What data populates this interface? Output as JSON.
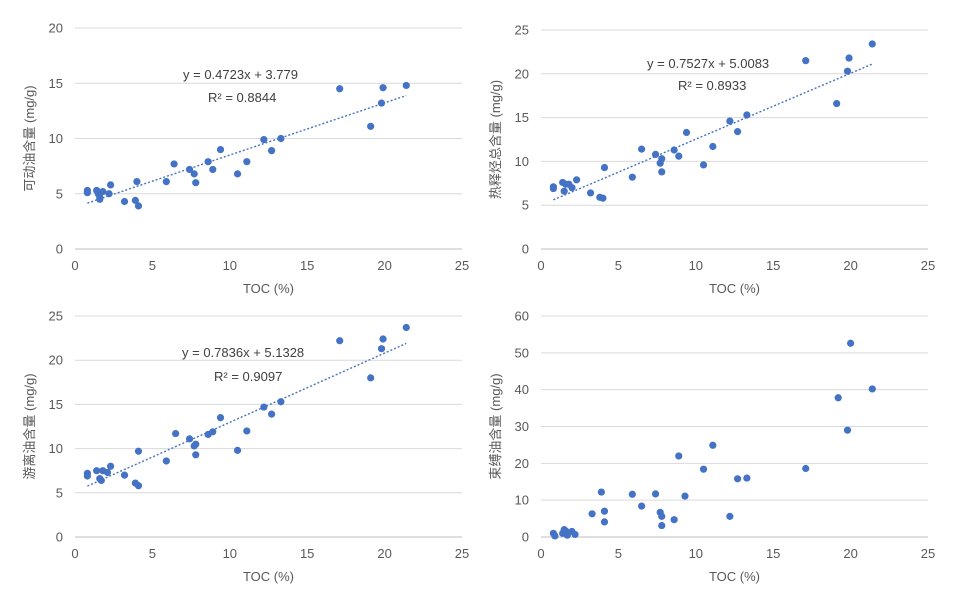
{
  "chart_data": [
    {
      "type": "scatter",
      "xlabel": "TOC (%)",
      "ylabel": "可动油含量 (mg/g)",
      "xlim": [
        0,
        25
      ],
      "ylim": [
        0,
        20
      ],
      "xticks": [
        0,
        5,
        10,
        15,
        20,
        25
      ],
      "yticks": [
        0,
        5,
        10,
        15,
        20
      ],
      "xtick_labels": [
        "0",
        "5",
        "10",
        "15",
        "20",
        "25"
      ],
      "ytick_labels": [
        "0",
        "5",
        "10",
        "15",
        "20"
      ],
      "grid": true,
      "trendline": {
        "slope": 0.4723,
        "intercept": 3.779,
        "x_range": [
          0.8,
          21.4
        ]
      },
      "equation": "y = 0.4723x + 3.779",
      "r2": "R² = 0.8844",
      "points": [
        [
          0.8,
          5.3
        ],
        [
          0.8,
          5.1
        ],
        [
          1.4,
          5.3
        ],
        [
          1.5,
          5.0
        ],
        [
          1.6,
          4.7
        ],
        [
          1.6,
          4.5
        ],
        [
          1.8,
          5.2
        ],
        [
          2.2,
          5.0
        ],
        [
          2.3,
          5.8
        ],
        [
          3.2,
          4.3
        ],
        [
          3.9,
          4.4
        ],
        [
          4.0,
          6.1
        ],
        [
          4.1,
          3.9
        ],
        [
          5.9,
          6.1
        ],
        [
          6.4,
          7.7
        ],
        [
          7.4,
          7.2
        ],
        [
          7.7,
          6.8
        ],
        [
          7.8,
          6.0
        ],
        [
          8.6,
          7.9
        ],
        [
          8.9,
          7.2
        ],
        [
          9.4,
          9.0
        ],
        [
          10.5,
          6.8
        ],
        [
          11.1,
          7.9
        ],
        [
          12.2,
          9.9
        ],
        [
          12.7,
          8.9
        ],
        [
          13.3,
          10.0
        ],
        [
          17.1,
          14.5
        ],
        [
          19.1,
          11.1
        ],
        [
          19.8,
          13.2
        ],
        [
          19.9,
          14.6
        ],
        [
          21.4,
          14.8
        ]
      ]
    },
    {
      "type": "scatter",
      "xlabel": "TOC (%)",
      "ylabel": "热释烃总含量 (mg/g)",
      "xlim": [
        0,
        25
      ],
      "ylim": [
        0,
        25
      ],
      "xticks": [
        0,
        5,
        10,
        15,
        20,
        25
      ],
      "yticks": [
        0,
        5,
        10,
        15,
        20,
        25
      ],
      "xtick_labels": [
        "0",
        "5",
        "10",
        "15",
        "20",
        "25"
      ],
      "ytick_labels": [
        "0",
        "5",
        "10",
        "15",
        "20",
        "25"
      ],
      "grid": true,
      "trendline": {
        "slope": 0.7527,
        "intercept": 5.0083,
        "x_range": [
          0.8,
          21.4
        ]
      },
      "equation": "y = 0.7527x + 5.0083",
      "r2": "R² = 0.8933",
      "points": [
        [
          0.8,
          7.1
        ],
        [
          0.8,
          6.9
        ],
        [
          1.4,
          7.6
        ],
        [
          1.5,
          6.6
        ],
        [
          1.6,
          7.4
        ],
        [
          1.8,
          7.4
        ],
        [
          2.0,
          7.0
        ],
        [
          2.3,
          7.9
        ],
        [
          3.2,
          6.4
        ],
        [
          3.8,
          5.9
        ],
        [
          4.0,
          5.8
        ],
        [
          4.1,
          9.3
        ],
        [
          5.9,
          8.2
        ],
        [
          6.5,
          11.4
        ],
        [
          7.4,
          10.8
        ],
        [
          7.7,
          9.8
        ],
        [
          7.8,
          10.3
        ],
        [
          7.8,
          8.8
        ],
        [
          8.6,
          11.3
        ],
        [
          8.9,
          10.6
        ],
        [
          9.4,
          13.3
        ],
        [
          10.5,
          9.6
        ],
        [
          11.1,
          11.7
        ],
        [
          12.2,
          14.6
        ],
        [
          12.7,
          13.4
        ],
        [
          13.3,
          15.3
        ],
        [
          17.1,
          21.5
        ],
        [
          19.1,
          16.6
        ],
        [
          19.8,
          20.3
        ],
        [
          19.9,
          21.8
        ],
        [
          21.4,
          23.4
        ]
      ]
    },
    {
      "type": "scatter",
      "xlabel": "TOC (%)",
      "ylabel": "游离油含量 (mg/g)",
      "xlim": [
        0,
        25
      ],
      "ylim": [
        0,
        25
      ],
      "xticks": [
        0,
        5,
        10,
        15,
        20,
        25
      ],
      "yticks": [
        0,
        5,
        10,
        15,
        20,
        25
      ],
      "xtick_labels": [
        "0",
        "5",
        "10",
        "15",
        "20",
        "25"
      ],
      "ytick_labels": [
        "0",
        "5",
        "10",
        "15",
        "20",
        "25"
      ],
      "grid": true,
      "trendline": {
        "slope": 0.7836,
        "intercept": 5.1328,
        "x_range": [
          0.8,
          21.4
        ]
      },
      "equation": "y = 0.7836x + 5.1328",
      "r2": "R² = 0.9097",
      "points": [
        [
          0.8,
          7.2
        ],
        [
          0.8,
          6.9
        ],
        [
          1.4,
          7.5
        ],
        [
          1.6,
          6.6
        ],
        [
          1.7,
          6.4
        ],
        [
          1.8,
          7.5
        ],
        [
          2.1,
          7.3
        ],
        [
          2.3,
          8.0
        ],
        [
          3.2,
          7.0
        ],
        [
          3.9,
          6.1
        ],
        [
          4.1,
          5.8
        ],
        [
          4.1,
          9.7
        ],
        [
          5.9,
          8.6
        ],
        [
          6.5,
          11.7
        ],
        [
          7.4,
          11.1
        ],
        [
          7.7,
          10.3
        ],
        [
          7.8,
          10.5
        ],
        [
          7.8,
          9.3
        ],
        [
          8.6,
          11.6
        ],
        [
          8.9,
          11.9
        ],
        [
          9.4,
          13.5
        ],
        [
          10.5,
          9.8
        ],
        [
          11.1,
          12.0
        ],
        [
          12.2,
          14.7
        ],
        [
          12.7,
          13.9
        ],
        [
          13.3,
          15.3
        ],
        [
          17.1,
          22.2
        ],
        [
          19.1,
          18.0
        ],
        [
          19.8,
          21.3
        ],
        [
          19.9,
          22.4
        ],
        [
          21.4,
          23.7
        ]
      ]
    },
    {
      "type": "scatter",
      "xlabel": "TOC (%)",
      "ylabel": "束缚油含量 (mg/g)",
      "xlim": [
        0,
        25
      ],
      "ylim": [
        0,
        60
      ],
      "xticks": [
        0,
        5,
        10,
        15,
        20,
        25
      ],
      "yticks": [
        0,
        10,
        20,
        30,
        40,
        50,
        60
      ],
      "xtick_labels": [
        "0",
        "5",
        "10",
        "15",
        "20",
        "25"
      ],
      "ytick_labels": [
        "0",
        "10",
        "20",
        "30",
        "40",
        "50",
        "60"
      ],
      "grid": true,
      "points": [
        [
          0.8,
          1.0
        ],
        [
          0.9,
          0.3
        ],
        [
          1.4,
          1.0
        ],
        [
          1.5,
          2.0
        ],
        [
          1.6,
          1.6
        ],
        [
          1.7,
          0.5
        ],
        [
          2.0,
          1.5
        ],
        [
          2.2,
          0.7
        ],
        [
          3.3,
          6.3
        ],
        [
          3.9,
          12.2
        ],
        [
          4.1,
          7.0
        ],
        [
          4.1,
          4.1
        ],
        [
          5.9,
          11.6
        ],
        [
          6.5,
          8.4
        ],
        [
          7.4,
          11.7
        ],
        [
          7.7,
          6.7
        ],
        [
          7.8,
          5.6
        ],
        [
          7.8,
          3.1
        ],
        [
          8.6,
          4.7
        ],
        [
          8.9,
          22.0
        ],
        [
          9.3,
          11.1
        ],
        [
          10.5,
          18.4
        ],
        [
          11.1,
          24.9
        ],
        [
          12.2,
          5.6
        ],
        [
          12.7,
          15.8
        ],
        [
          13.3,
          16.0
        ],
        [
          17.1,
          18.6
        ],
        [
          19.2,
          37.8
        ],
        [
          19.8,
          29.0
        ],
        [
          20.0,
          52.6
        ],
        [
          21.4,
          40.2
        ]
      ]
    }
  ]
}
